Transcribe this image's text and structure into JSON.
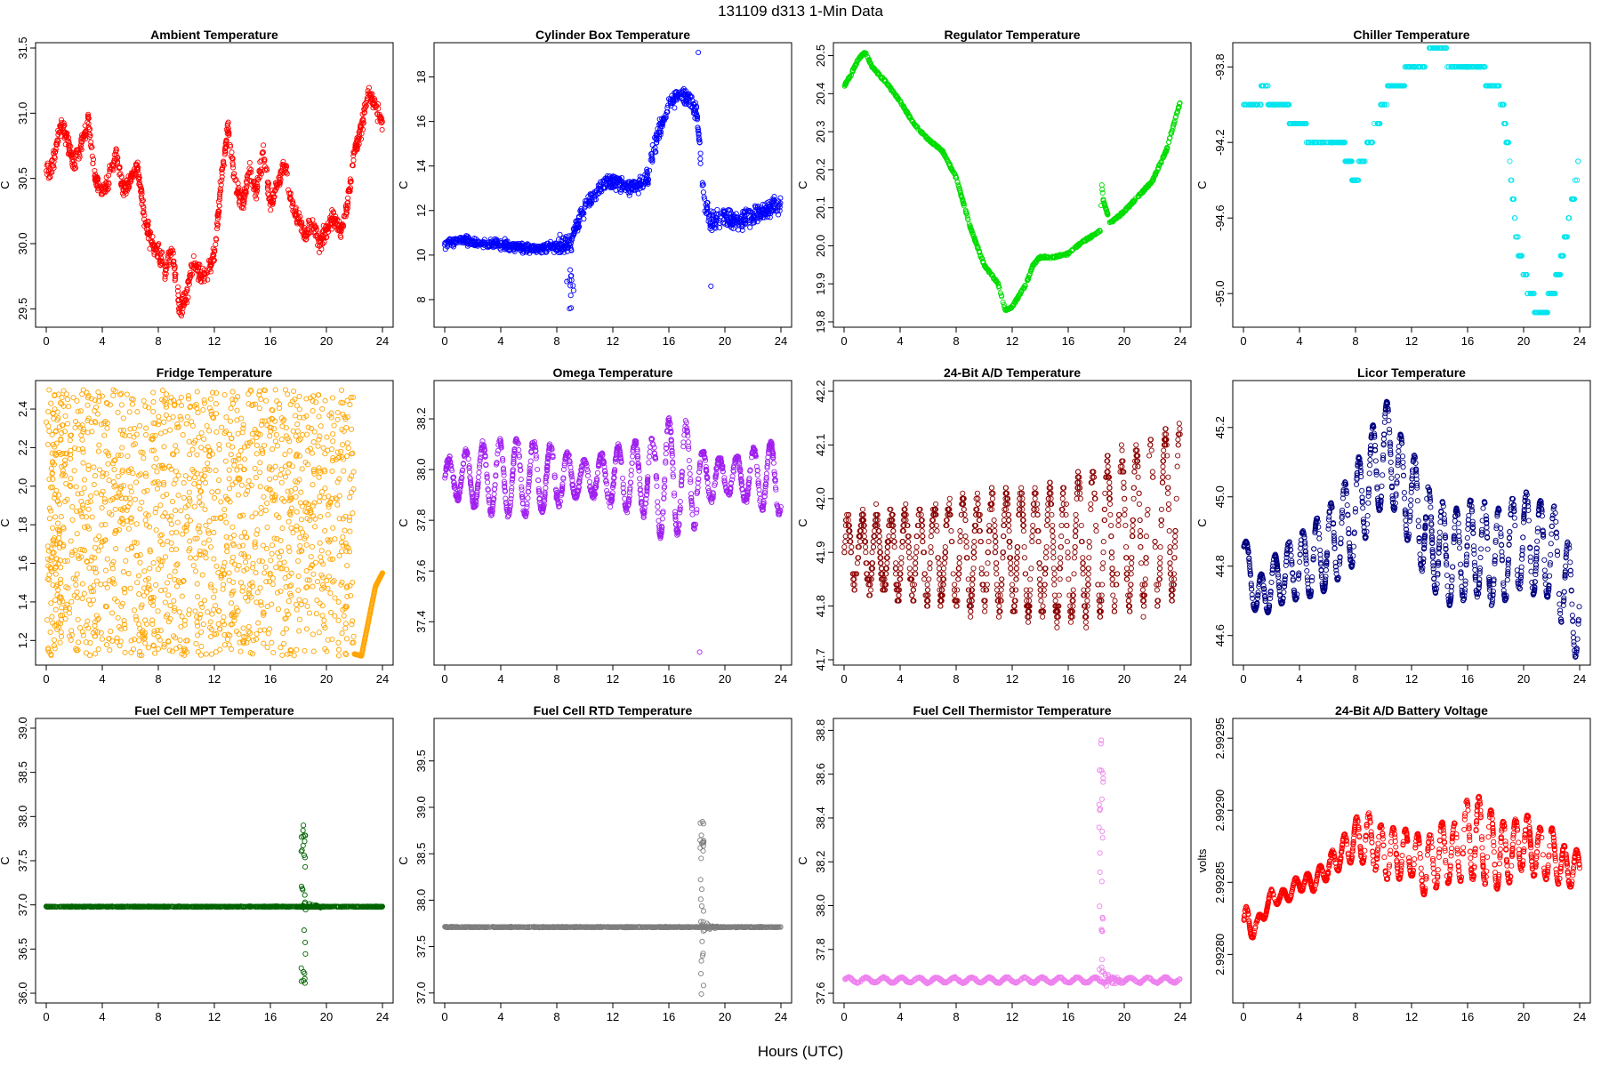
{
  "figure": {
    "title": "131109   d313   1-Min Data",
    "xlabel": "Hours (UTC)"
  },
  "chart_data": [
    {
      "type": "scatter",
      "title": "Ambient Temperature",
      "ylabel": "C",
      "color": "#ff0000",
      "xlim": [
        0,
        24
      ],
      "xticks": [
        0,
        4,
        8,
        12,
        16,
        20,
        24
      ],
      "ylim": [
        29.4,
        31.5
      ],
      "yticks": [
        "29.5",
        "30.0",
        "30.5",
        "31.0",
        "31.5"
      ],
      "series": [
        {
          "name": "Ambient",
          "x": [
            0,
            0.5,
            1,
            1.5,
            2,
            2.5,
            3,
            3.5,
            4,
            4.5,
            5,
            5.5,
            6,
            6.5,
            7,
            7.5,
            8,
            8.5,
            9,
            9.5,
            10,
            10.5,
            11,
            11.5,
            12,
            12.5,
            13,
            13.5,
            14,
            14.5,
            15,
            15.5,
            16,
            16.5,
            17,
            17.5,
            18,
            18.5,
            19,
            19.5,
            20,
            20.5,
            21,
            21.5,
            22,
            22.5,
            23,
            23.5,
            24
          ],
          "y": [
            30.55,
            30.6,
            30.9,
            30.8,
            30.6,
            30.75,
            30.95,
            30.5,
            30.4,
            30.5,
            30.7,
            30.4,
            30.5,
            30.6,
            30.2,
            30.0,
            29.95,
            29.8,
            29.95,
            29.5,
            29.6,
            29.85,
            29.75,
            29.8,
            29.9,
            30.5,
            30.9,
            30.45,
            30.3,
            30.55,
            30.4,
            30.7,
            30.3,
            30.45,
            30.6,
            30.3,
            30.2,
            30.05,
            30.15,
            30.0,
            30.1,
            30.2,
            30.1,
            30.3,
            30.7,
            30.9,
            31.15,
            31.05,
            30.9
          ]
        }
      ]
    },
    {
      "type": "scatter",
      "title": "Cylinder Box Temperature",
      "ylabel": "C",
      "color": "#0000ff",
      "xlim": [
        0,
        24
      ],
      "xticks": [
        0,
        4,
        8,
        12,
        16,
        20,
        24
      ],
      "ylim": [
        7,
        19.3
      ],
      "yticks": [
        "8",
        "10",
        "12",
        "14",
        "16",
        "18"
      ],
      "series": [
        {
          "name": "Cylinder Box",
          "x": [
            0,
            1,
            2,
            3,
            4,
            5,
            6,
            7,
            8,
            8.5,
            9,
            9.5,
            10,
            10.5,
            11,
            11.5,
            12,
            13,
            14,
            14.5,
            15,
            15.5,
            16,
            16.5,
            17,
            17.5,
            18,
            18.5,
            19,
            20,
            21,
            22,
            23,
            24
          ],
          "y": [
            10.5,
            10.7,
            10.6,
            10.5,
            10.5,
            10.4,
            10.3,
            10.3,
            10.4,
            10.5,
            10.6,
            11.4,
            12.2,
            12.6,
            12.9,
            13.2,
            13.3,
            13.1,
            13.2,
            13.4,
            15.0,
            15.9,
            16.8,
            17.1,
            17.2,
            17.0,
            16.3,
            12.5,
            11.5,
            11.7,
            11.5,
            11.8,
            12.0,
            12.3
          ]
        }
      ]
    },
    {
      "type": "scatter",
      "title": "Regulator Temperature",
      "ylabel": "C",
      "color": "#00dd00",
      "xlim": [
        0,
        24
      ],
      "xticks": [
        0,
        4,
        8,
        12,
        16,
        20,
        24
      ],
      "ylim": [
        19.8,
        20.52
      ],
      "yticks": [
        "19.8",
        "19.9",
        "20.0",
        "20.1",
        "20.2",
        "20.3",
        "20.4",
        "20.5"
      ],
      "series": [
        {
          "name": "Regulator",
          "x": [
            0,
            0.5,
            1,
            1.5,
            2,
            3,
            4,
            5,
            6,
            7,
            8,
            9,
            10,
            11,
            11.5,
            12,
            13,
            13.5,
            14,
            15,
            16,
            17,
            18.3,
            18.4,
            18.5,
            19,
            20,
            21,
            22,
            23,
            24
          ],
          "y": [
            20.42,
            20.45,
            20.49,
            20.51,
            20.47,
            20.43,
            20.38,
            20.32,
            20.28,
            20.25,
            20.18,
            20.05,
            19.95,
            19.9,
            19.83,
            19.84,
            19.9,
            19.95,
            19.97,
            19.97,
            19.98,
            20.01,
            20.04,
            20.16,
            20.12,
            20.06,
            20.09,
            20.13,
            20.17,
            20.25,
            20.38
          ]
        }
      ]
    },
    {
      "type": "scatter",
      "title": "Chiller Temperature",
      "ylabel": "C",
      "color": "#00e5ee",
      "xlim": [
        0,
        24
      ],
      "xticks": [
        0,
        4,
        8,
        12,
        16,
        20,
        24
      ],
      "ylim": [
        -95.15,
        -93.7
      ],
      "yticks": [
        "-95.0",
        "-94.6",
        "-94.2",
        "-93.8"
      ],
      "series": [
        {
          "name": "Chiller",
          "x": [
            0,
            1,
            1.5,
            2,
            3,
            3.5,
            4,
            5,
            6,
            7,
            7.5,
            8,
            8.5,
            9,
            9.5,
            10,
            10.5,
            11,
            12,
            13,
            13.5,
            14,
            15,
            16,
            17,
            17.5,
            18,
            18.5,
            19,
            19.5,
            20,
            20.5,
            21,
            21.5,
            22,
            22.5,
            23,
            23.5,
            24
          ],
          "y": [
            -94.0,
            -94.0,
            -93.9,
            -94.0,
            -94.0,
            -94.1,
            -94.1,
            -94.2,
            -94.2,
            -94.2,
            -94.3,
            -94.4,
            -94.3,
            -94.2,
            -94.1,
            -94.0,
            -93.9,
            -93.9,
            -93.8,
            -93.8,
            -93.7,
            -93.7,
            -93.8,
            -93.8,
            -93.8,
            -93.9,
            -93.9,
            -94.0,
            -94.3,
            -94.7,
            -94.9,
            -95.0,
            -95.1,
            -95.1,
            -95.0,
            -94.9,
            -94.7,
            -94.5,
            -94.3
          ]
        }
      ]
    },
    {
      "type": "scatter",
      "title": "Fridge Temperature",
      "ylabel": "C",
      "color": "#ffa500",
      "xlim": [
        0,
        24
      ],
      "xticks": [
        0,
        4,
        8,
        12,
        16,
        20,
        24
      ],
      "ylim": [
        1.1,
        2.52
      ],
      "yticks": [
        "1.2",
        "1.4",
        "1.6",
        "1.8",
        "2.0",
        "2.2",
        "2.4"
      ],
      "series": [
        {
          "name": "Fridge",
          "x_range": [
            0,
            22
          ],
          "y_range": [
            1.12,
            2.5
          ],
          "tail_x": [
            22,
            22.5,
            23,
            23.5,
            24
          ],
          "tail_y": [
            1.13,
            1.12,
            1.3,
            1.48,
            1.55
          ]
        }
      ]
    },
    {
      "type": "scatter",
      "title": "Omega Temperature",
      "ylabel": "C",
      "color": "#a020f0",
      "xlim": [
        0,
        24
      ],
      "xticks": [
        0,
        4,
        8,
        12,
        16,
        20,
        24
      ],
      "ylim": [
        37.25,
        38.33
      ],
      "yticks": [
        "37.4",
        "37.6",
        "37.8",
        "38.0",
        "38.2"
      ],
      "series": [
        {
          "name": "Omega",
          "center": 37.97,
          "outlier": [
            18.2,
            37.28
          ]
        }
      ]
    },
    {
      "type": "scatter",
      "title": "24-Bit A/D Temperature",
      "ylabel": "C",
      "color": "#8b0000",
      "xlim": [
        0,
        24
      ],
      "xticks": [
        0,
        4,
        8,
        12,
        16,
        20,
        24
      ],
      "ylim": [
        41.7,
        42.21
      ],
      "yticks": [
        "41.7",
        "41.8",
        "41.9",
        "42.0",
        "42.1",
        "42.2"
      ],
      "series": [
        {
          "name": "24-Bit A/D",
          "center": 41.9
        }
      ]
    },
    {
      "type": "scatter",
      "title": "Licor Temperature",
      "ylabel": "C",
      "color": "#000080",
      "xlim": [
        0,
        24
      ],
      "xticks": [
        0,
        4,
        8,
        12,
        16,
        20,
        24
      ],
      "ylim": [
        44.53,
        45.32
      ],
      "yticks": [
        "44.6",
        "44.8",
        "45.0",
        "45.2"
      ],
      "series": [
        {
          "name": "Licor",
          "x": [
            0,
            1,
            2,
            3,
            4,
            5,
            6,
            7,
            8,
            9,
            10,
            10.5,
            11,
            12,
            13,
            14,
            15,
            16,
            17,
            18,
            19,
            20,
            21,
            22,
            23,
            24
          ],
          "y": [
            44.85,
            44.7,
            44.75,
            44.78,
            44.8,
            44.82,
            44.85,
            44.9,
            44.95,
            45.05,
            45.12,
            45.15,
            45.05,
            45.0,
            44.9,
            44.85,
            44.82,
            44.85,
            44.85,
            44.82,
            44.85,
            44.88,
            44.85,
            44.85,
            44.75,
            44.65
          ]
        }
      ]
    },
    {
      "type": "scatter",
      "title": "Fuel Cell MPT Temperature",
      "ylabel": "C",
      "color": "#006400",
      "xlim": [
        0,
        24
      ],
      "xticks": [
        0,
        4,
        8,
        12,
        16,
        20,
        24
      ],
      "ylim": [
        35.95,
        39.05
      ],
      "yticks": [
        "36.0",
        "36.5",
        "37.0",
        "37.5",
        "38.0",
        "38.5",
        "39.0"
      ],
      "series": [
        {
          "name": "Fuel Cell MPT",
          "baseline": 36.98
        }
      ]
    },
    {
      "type": "scatter",
      "title": "Fuel Cell RTD Temperature",
      "ylabel": "C",
      "color": "#7f7f7f",
      "xlim": [
        0,
        24
      ],
      "xticks": [
        0,
        4,
        8,
        12,
        16,
        20,
        24
      ],
      "ylim": [
        36.95,
        39.9
      ],
      "yticks": [
        "37.0",
        "37.5",
        "38.0",
        "38.5",
        "39.0",
        "39.5"
      ],
      "series": [
        {
          "name": "Fuel Cell RTD",
          "baseline": 37.71
        }
      ]
    },
    {
      "type": "scatter",
      "title": "Fuel Cell Thermistor Temperature",
      "ylabel": "C",
      "color": "#ee82ee",
      "xlim": [
        0,
        24
      ],
      "xticks": [
        0,
        4,
        8,
        12,
        16,
        20,
        24
      ],
      "ylim": [
        37.58,
        38.83
      ],
      "yticks": [
        "37.6",
        "37.8",
        "38.0",
        "38.2",
        "38.4",
        "38.6",
        "38.8"
      ],
      "series": [
        {
          "name": "Fuel Cell Thermistor",
          "baseline": 37.66
        }
      ]
    },
    {
      "type": "scatter",
      "title": "24-Bit A/D Battery Voltage",
      "ylabel": "volts",
      "color": "#ff0000",
      "xlim": [
        0,
        24
      ],
      "xticks": [
        0,
        4,
        8,
        12,
        16,
        20,
        24
      ],
      "ylim": [
        2.99277,
        2.99296
      ],
      "yticks": [
        "2.99280",
        "2.99285",
        "2.99290",
        "2.99295"
      ],
      "series": [
        {
          "name": "Battery Voltage",
          "x": [
            0,
            1,
            2,
            3,
            4,
            5,
            6,
            7,
            8,
            9,
            10,
            11,
            12,
            13,
            14,
            15,
            16,
            17,
            18,
            19,
            20,
            21,
            22,
            23,
            24
          ],
          "y": [
            2.99282,
            2.99282,
            2.99284,
            2.99284,
            2.99285,
            2.99285,
            2.99286,
            2.99287,
            2.99288,
            2.99288,
            2.99287,
            2.99287,
            2.99287,
            2.99286,
            2.99287,
            2.99287,
            2.99288,
            2.99288,
            2.99287,
            2.99287,
            2.99288,
            2.99287,
            2.99287,
            2.99286,
            2.99286
          ],
          "amp": [
            1.5e-05,
            5e-06,
            5e-06,
            5e-06,
            6e-06,
            6e-06,
            8e-06,
            1e-05,
            1.5e-05,
            1.8e-05,
            1.8e-05,
            1.8e-05,
            1.6e-05,
            2e-05,
            2.2e-05,
            2e-05,
            2.8e-05,
            3e-05,
            2.5e-05,
            2e-05,
            2e-05,
            1.8e-05,
            1.8e-05,
            1.4e-05,
            1.2e-05
          ]
        }
      ]
    }
  ]
}
